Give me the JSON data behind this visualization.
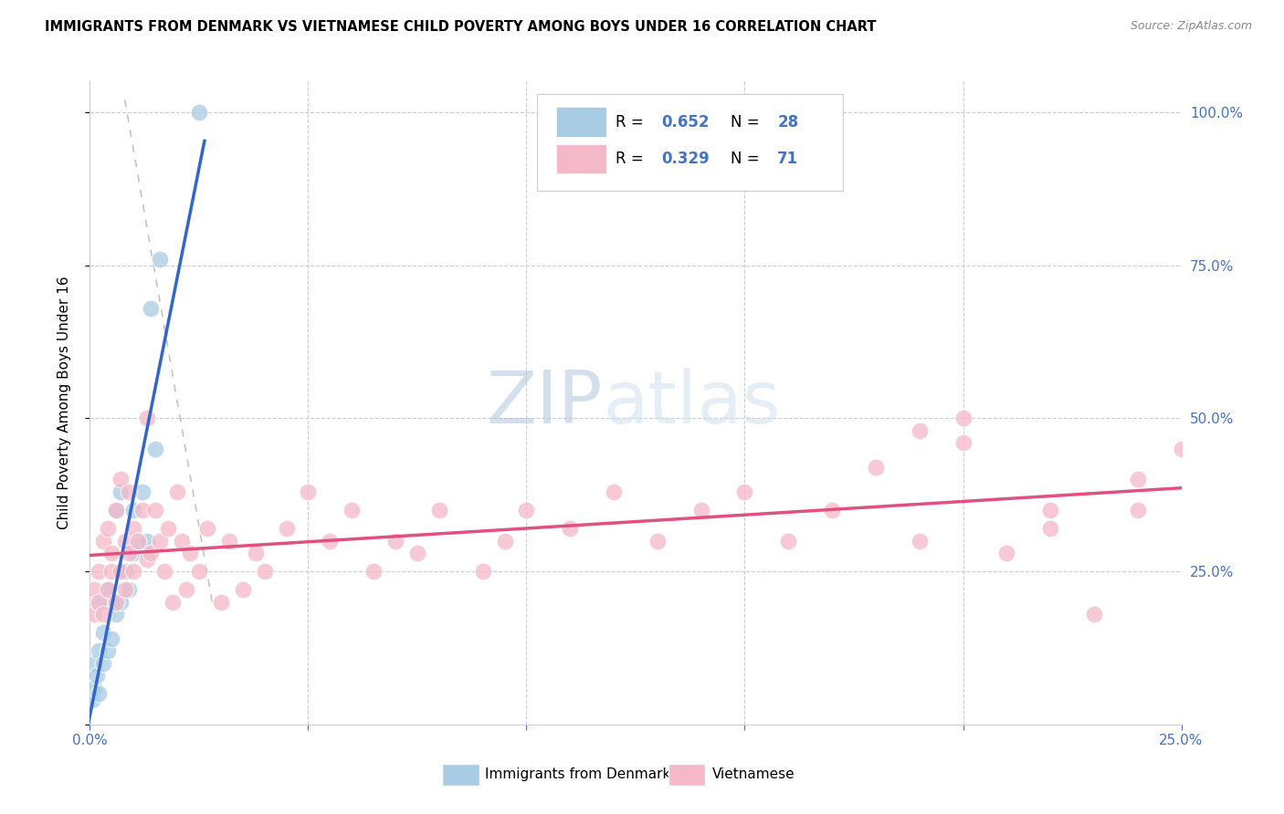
{
  "title": "IMMIGRANTS FROM DENMARK VS VIETNAMESE CHILD POVERTY AMONG BOYS UNDER 16 CORRELATION CHART",
  "source": "Source: ZipAtlas.com",
  "ylabel": "Child Poverty Among Boys Under 16",
  "blue_color": "#a8cce4",
  "pink_color": "#f4b8c8",
  "blue_line_color": "#3366cc",
  "pink_line_color": "#e05080",
  "legend_bottom1": "Immigrants from Denmark",
  "legend_bottom2": "Vietnamese",
  "R_blue": "0.652",
  "N_blue": "28",
  "R_pink": "0.329",
  "N_pink": "71",
  "accent_color": "#4472c4",
  "watermark_color": "#d0e4f0",
  "xlim": [
    0.0,
    0.25
  ],
  "ylim": [
    0.0,
    1.05
  ],
  "blue_x": [
    0.0005,
    0.001,
    0.001,
    0.0015,
    0.002,
    0.002,
    0.002,
    0.003,
    0.003,
    0.004,
    0.004,
    0.005,
    0.005,
    0.006,
    0.006,
    0.007,
    0.007,
    0.008,
    0.009,
    0.01,
    0.01,
    0.011,
    0.012,
    0.013,
    0.014,
    0.015,
    0.016,
    0.025
  ],
  "blue_y": [
    0.04,
    0.06,
    0.1,
    0.08,
    0.05,
    0.12,
    0.2,
    0.1,
    0.15,
    0.12,
    0.22,
    0.14,
    0.2,
    0.18,
    0.35,
    0.2,
    0.38,
    0.25,
    0.22,
    0.28,
    0.35,
    0.3,
    0.38,
    0.3,
    0.68,
    0.45,
    0.76,
    1.0
  ],
  "pink_x": [
    0.001,
    0.001,
    0.002,
    0.002,
    0.003,
    0.003,
    0.004,
    0.004,
    0.005,
    0.005,
    0.006,
    0.006,
    0.007,
    0.007,
    0.008,
    0.008,
    0.009,
    0.009,
    0.01,
    0.01,
    0.011,
    0.012,
    0.013,
    0.013,
    0.014,
    0.015,
    0.016,
    0.017,
    0.018,
    0.019,
    0.02,
    0.021,
    0.022,
    0.023,
    0.025,
    0.027,
    0.03,
    0.032,
    0.035,
    0.038,
    0.04,
    0.045,
    0.05,
    0.055,
    0.06,
    0.065,
    0.07,
    0.075,
    0.08,
    0.09,
    0.095,
    0.1,
    0.11,
    0.12,
    0.13,
    0.14,
    0.15,
    0.16,
    0.17,
    0.18,
    0.19,
    0.2,
    0.21,
    0.22,
    0.23,
    0.24,
    0.25,
    0.19,
    0.2,
    0.22,
    0.24
  ],
  "pink_y": [
    0.18,
    0.22,
    0.2,
    0.25,
    0.18,
    0.3,
    0.22,
    0.32,
    0.25,
    0.28,
    0.2,
    0.35,
    0.25,
    0.4,
    0.22,
    0.3,
    0.28,
    0.38,
    0.25,
    0.32,
    0.3,
    0.35,
    0.27,
    0.5,
    0.28,
    0.35,
    0.3,
    0.25,
    0.32,
    0.2,
    0.38,
    0.3,
    0.22,
    0.28,
    0.25,
    0.32,
    0.2,
    0.3,
    0.22,
    0.28,
    0.25,
    0.32,
    0.38,
    0.3,
    0.35,
    0.25,
    0.3,
    0.28,
    0.35,
    0.25,
    0.3,
    0.35,
    0.32,
    0.38,
    0.3,
    0.35,
    0.38,
    0.3,
    0.35,
    0.42,
    0.48,
    0.5,
    0.28,
    0.35,
    0.18,
    0.4,
    0.45,
    0.3,
    0.46,
    0.32,
    0.35
  ]
}
